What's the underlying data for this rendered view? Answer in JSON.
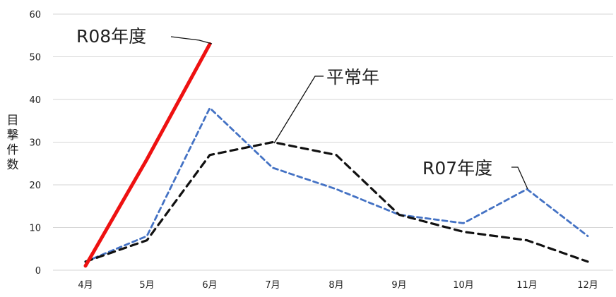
{
  "chart_data": {
    "type": "line",
    "categories": [
      "4月",
      "5月",
      "6月",
      "7月",
      "8月",
      "9月",
      "10月",
      "11月",
      "12月"
    ],
    "series": [
      {
        "name": "R08年度",
        "values": [
          1,
          26,
          53,
          null,
          null,
          null,
          null,
          null,
          null
        ],
        "color": "#ee1111",
        "style": "solid"
      },
      {
        "name": "平常年",
        "values": [
          2,
          7,
          27,
          30,
          27,
          13,
          9,
          7,
          2
        ],
        "color": "#111111",
        "style": "dashed"
      },
      {
        "name": "R07年度",
        "values": [
          2,
          8,
          38,
          24,
          19,
          13,
          11,
          19,
          8
        ],
        "color": "#4472c4",
        "style": "dashed"
      }
    ],
    "ylabel": "目撃件数",
    "yticks": [
      0,
      10,
      20,
      30,
      40,
      50,
      60
    ],
    "ylim": [
      0,
      60
    ],
    "grid": true,
    "legend": "inline annotations"
  }
}
